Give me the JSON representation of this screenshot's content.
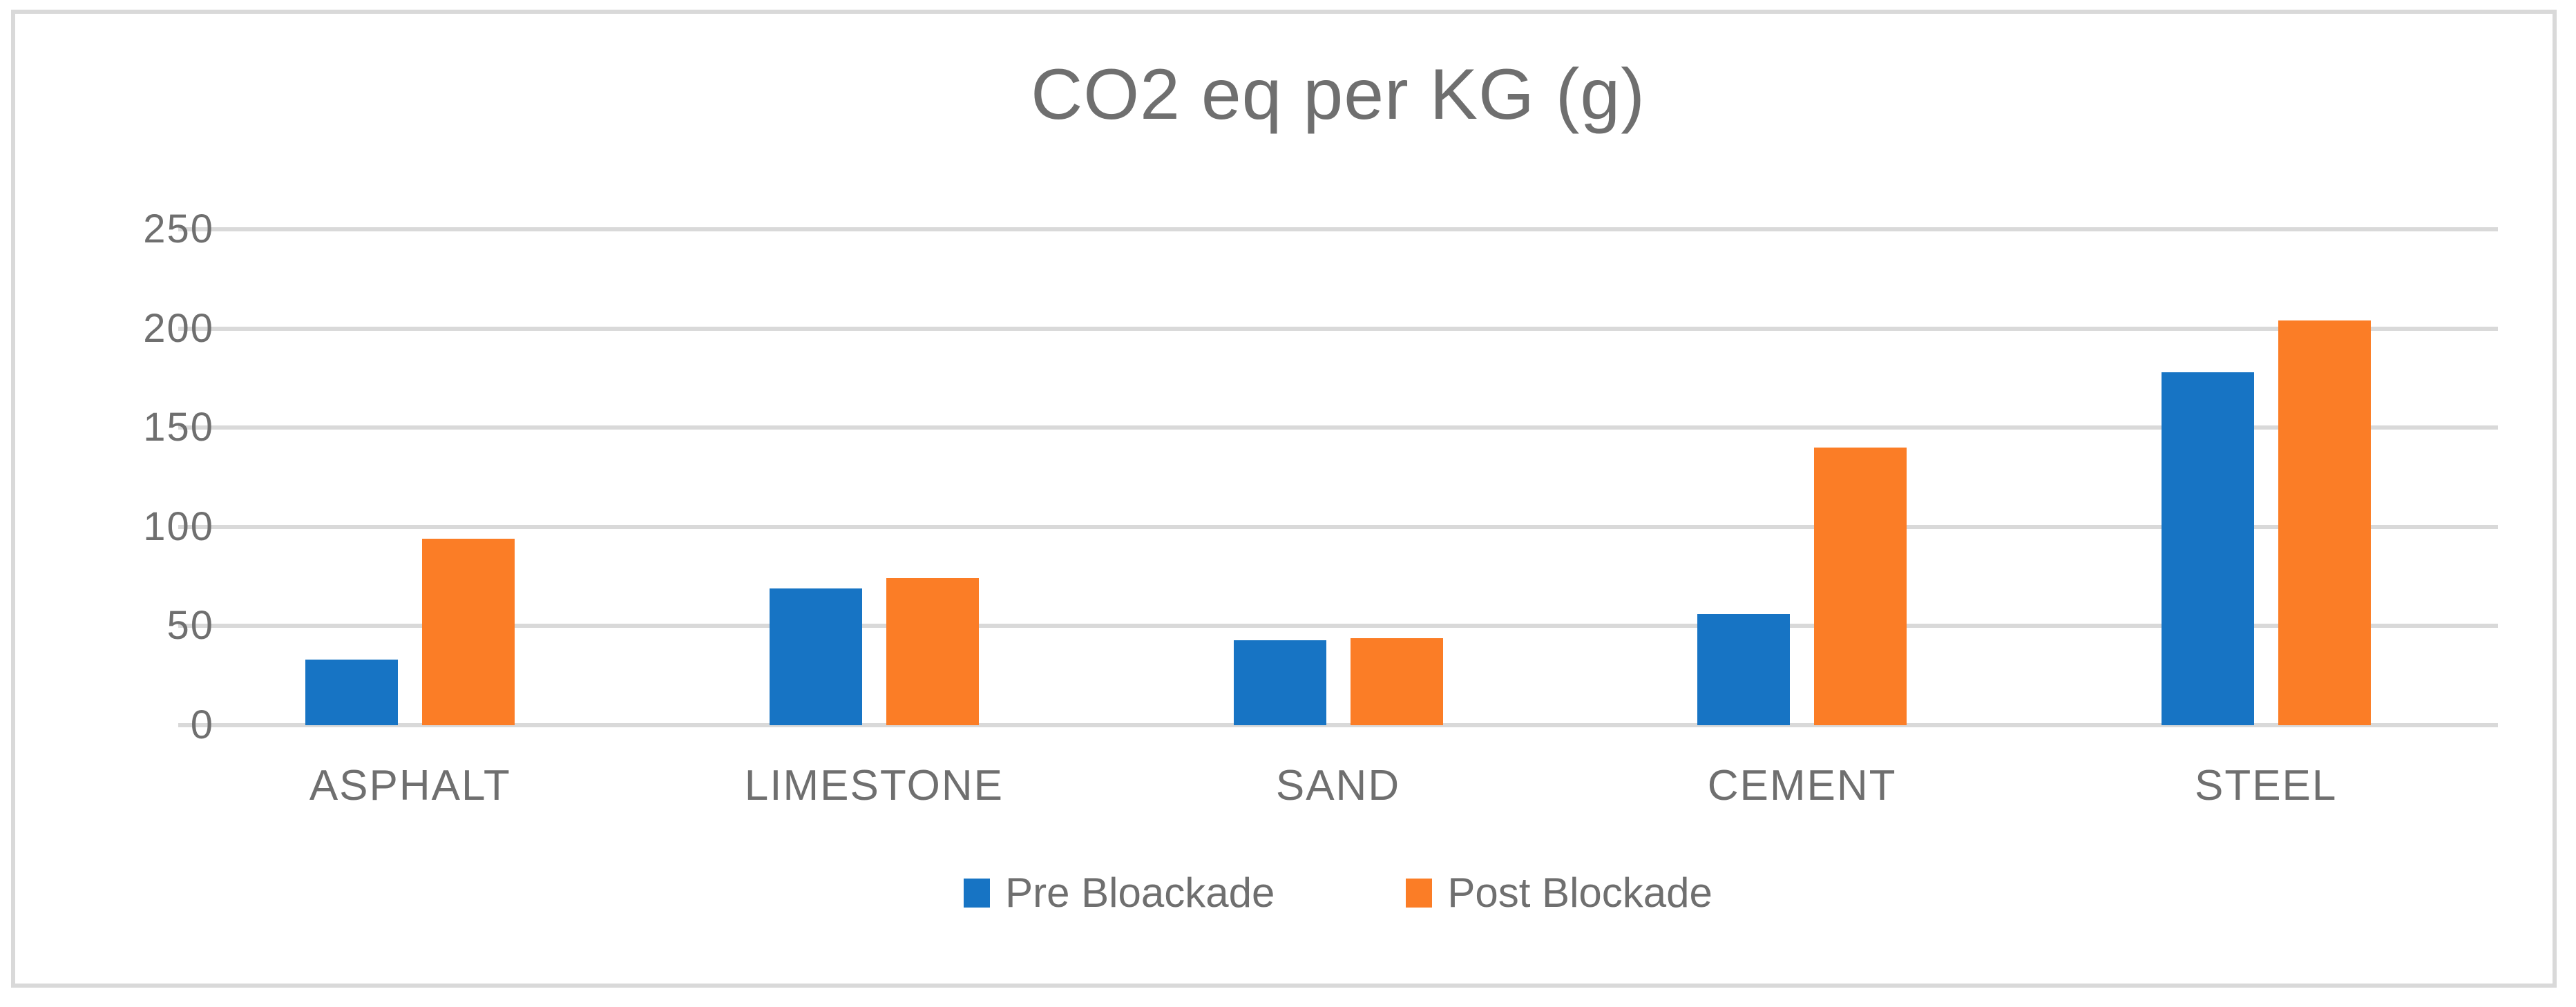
{
  "chart_data": {
    "type": "bar",
    "title": "CO2 eq per KG (g)",
    "categories": [
      "ASPHALT",
      "LIMESTONE",
      "SAND",
      "CEMENT",
      "STEEL"
    ],
    "series": [
      {
        "name": "Pre Bloackade",
        "color": "#1774C4",
        "values": [
          33,
          69,
          43,
          56,
          178
        ]
      },
      {
        "name": "Post Blockade",
        "color": "#FB7D26",
        "values": [
          94,
          74,
          44,
          140,
          204
        ]
      }
    ],
    "xlabel": "",
    "ylabel": "",
    "ylim": [
      0,
      250
    ],
    "y_ticks": [
      0,
      50,
      100,
      150,
      200,
      250
    ],
    "grid": true,
    "legend_position": "bottom"
  },
  "colors": {
    "gridline": "#D9D9D9",
    "frame_border": "#D9D9D9",
    "text": "#6F6F6F",
    "background": "#FFFFFF"
  }
}
